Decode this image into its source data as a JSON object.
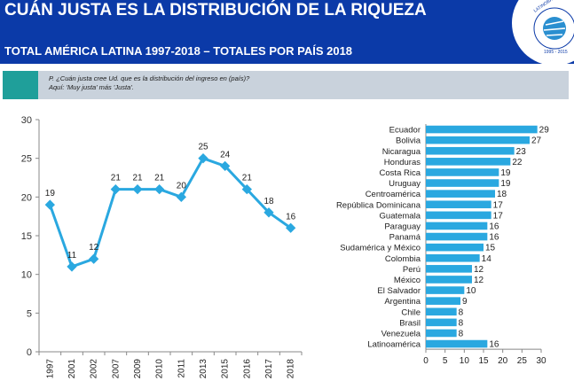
{
  "header": {
    "title": "CUÁN JUSTA ES LA DISTRIBUCIÓN DE LA RIQUEZA",
    "subtitle": "TOTAL AMÉRICA LATINA 1997-2018 – TOTALES POR PAÍS 2018",
    "logo_text": "LATINOBARÓMETRO 1995-2015"
  },
  "question": {
    "line1": "P. ¿Cuán justa cree Ud. que es la distribución del ingreso en (país)?",
    "line2": "Aquí: 'Muy justa' más 'Justa'."
  },
  "colors": {
    "header_bg": "#0b3aa8",
    "accent": "#1f9f9a",
    "question_bar": "#c9d2dc",
    "series": "#2aa8e0"
  },
  "chart_data": [
    {
      "type": "line",
      "title": "",
      "xlabel": "",
      "ylabel": "",
      "x": [
        "1997",
        "2001",
        "2002",
        "2007",
        "2009",
        "2010",
        "2011",
        "2013",
        "2015",
        "2016",
        "2017",
        "2018"
      ],
      "values": [
        19,
        11,
        12,
        21,
        21,
        21,
        20,
        25,
        24,
        21,
        18,
        16
      ],
      "ylim": [
        0,
        30
      ],
      "yticks": [
        0,
        5,
        10,
        15,
        20,
        25,
        30
      ],
      "grid": false
    },
    {
      "type": "bar",
      "orientation": "horizontal",
      "title": "",
      "xlabel": "",
      "ylabel": "",
      "categories": [
        "Ecuador",
        "Bolivia",
        "Nicaragua",
        "Honduras",
        "Costa Rica",
        "Uruguay",
        "Centroamérica",
        "República Dominicana",
        "Guatemala",
        "Paraguay",
        "Panamá",
        "Sudamérica y México",
        "Colombia",
        "Perú",
        "México",
        "El Salvador",
        "Argentina",
        "Chile",
        "Brasil",
        "Venezuela",
        "Latinoamérica"
      ],
      "values": [
        29,
        27,
        23,
        22,
        19,
        19,
        18,
        17,
        17,
        16,
        16,
        15,
        14,
        12,
        12,
        10,
        9,
        8,
        8,
        8,
        16
      ],
      "xlim": [
        0,
        30
      ],
      "xticks": [
        0,
        5,
        10,
        15,
        20,
        25,
        30
      ],
      "grid": false
    }
  ]
}
